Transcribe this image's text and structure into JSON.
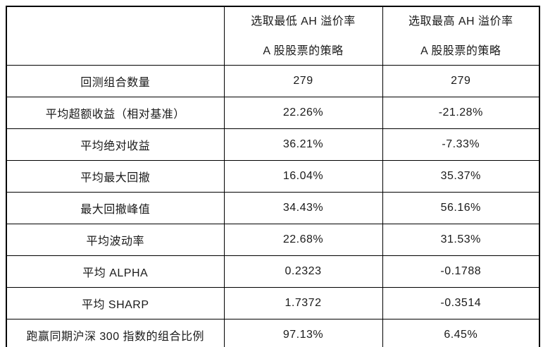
{
  "table": {
    "header": {
      "corner": "",
      "low_strategy_line1": "选取最低 AH 溢价率",
      "low_strategy_line2": "A 股股票的策略",
      "high_strategy_line1": "选取最高 AH 溢价率",
      "high_strategy_line2": "A 股股票的策略"
    },
    "rows": [
      {
        "label": "回测组合数量",
        "low": "279",
        "high": "279"
      },
      {
        "label": "平均超额收益（相对基准）",
        "low": "22.26%",
        "high": "-21.28%"
      },
      {
        "label": "平均绝对收益",
        "low": "36.21%",
        "high": "-7.33%"
      },
      {
        "label": "平均最大回撤",
        "low": "16.04%",
        "high": "35.37%"
      },
      {
        "label": "最大回撤峰值",
        "low": "34.43%",
        "high": "56.16%"
      },
      {
        "label": "平均波动率",
        "low": "22.68%",
        "high": "31.53%"
      },
      {
        "label": "平均 ALPHA",
        "low": "0.2323",
        "high": "-0.1788"
      },
      {
        "label": "平均 SHARP",
        "low": "1.7372",
        "high": "-0.3514"
      },
      {
        "label": "跑赢同期沪深 300 指数的组合比例",
        "low": "97.13%",
        "high": "6.45%"
      }
    ]
  },
  "colors": {
    "border": "#000000",
    "text": "#1a1a1a",
    "background": "#ffffff"
  }
}
